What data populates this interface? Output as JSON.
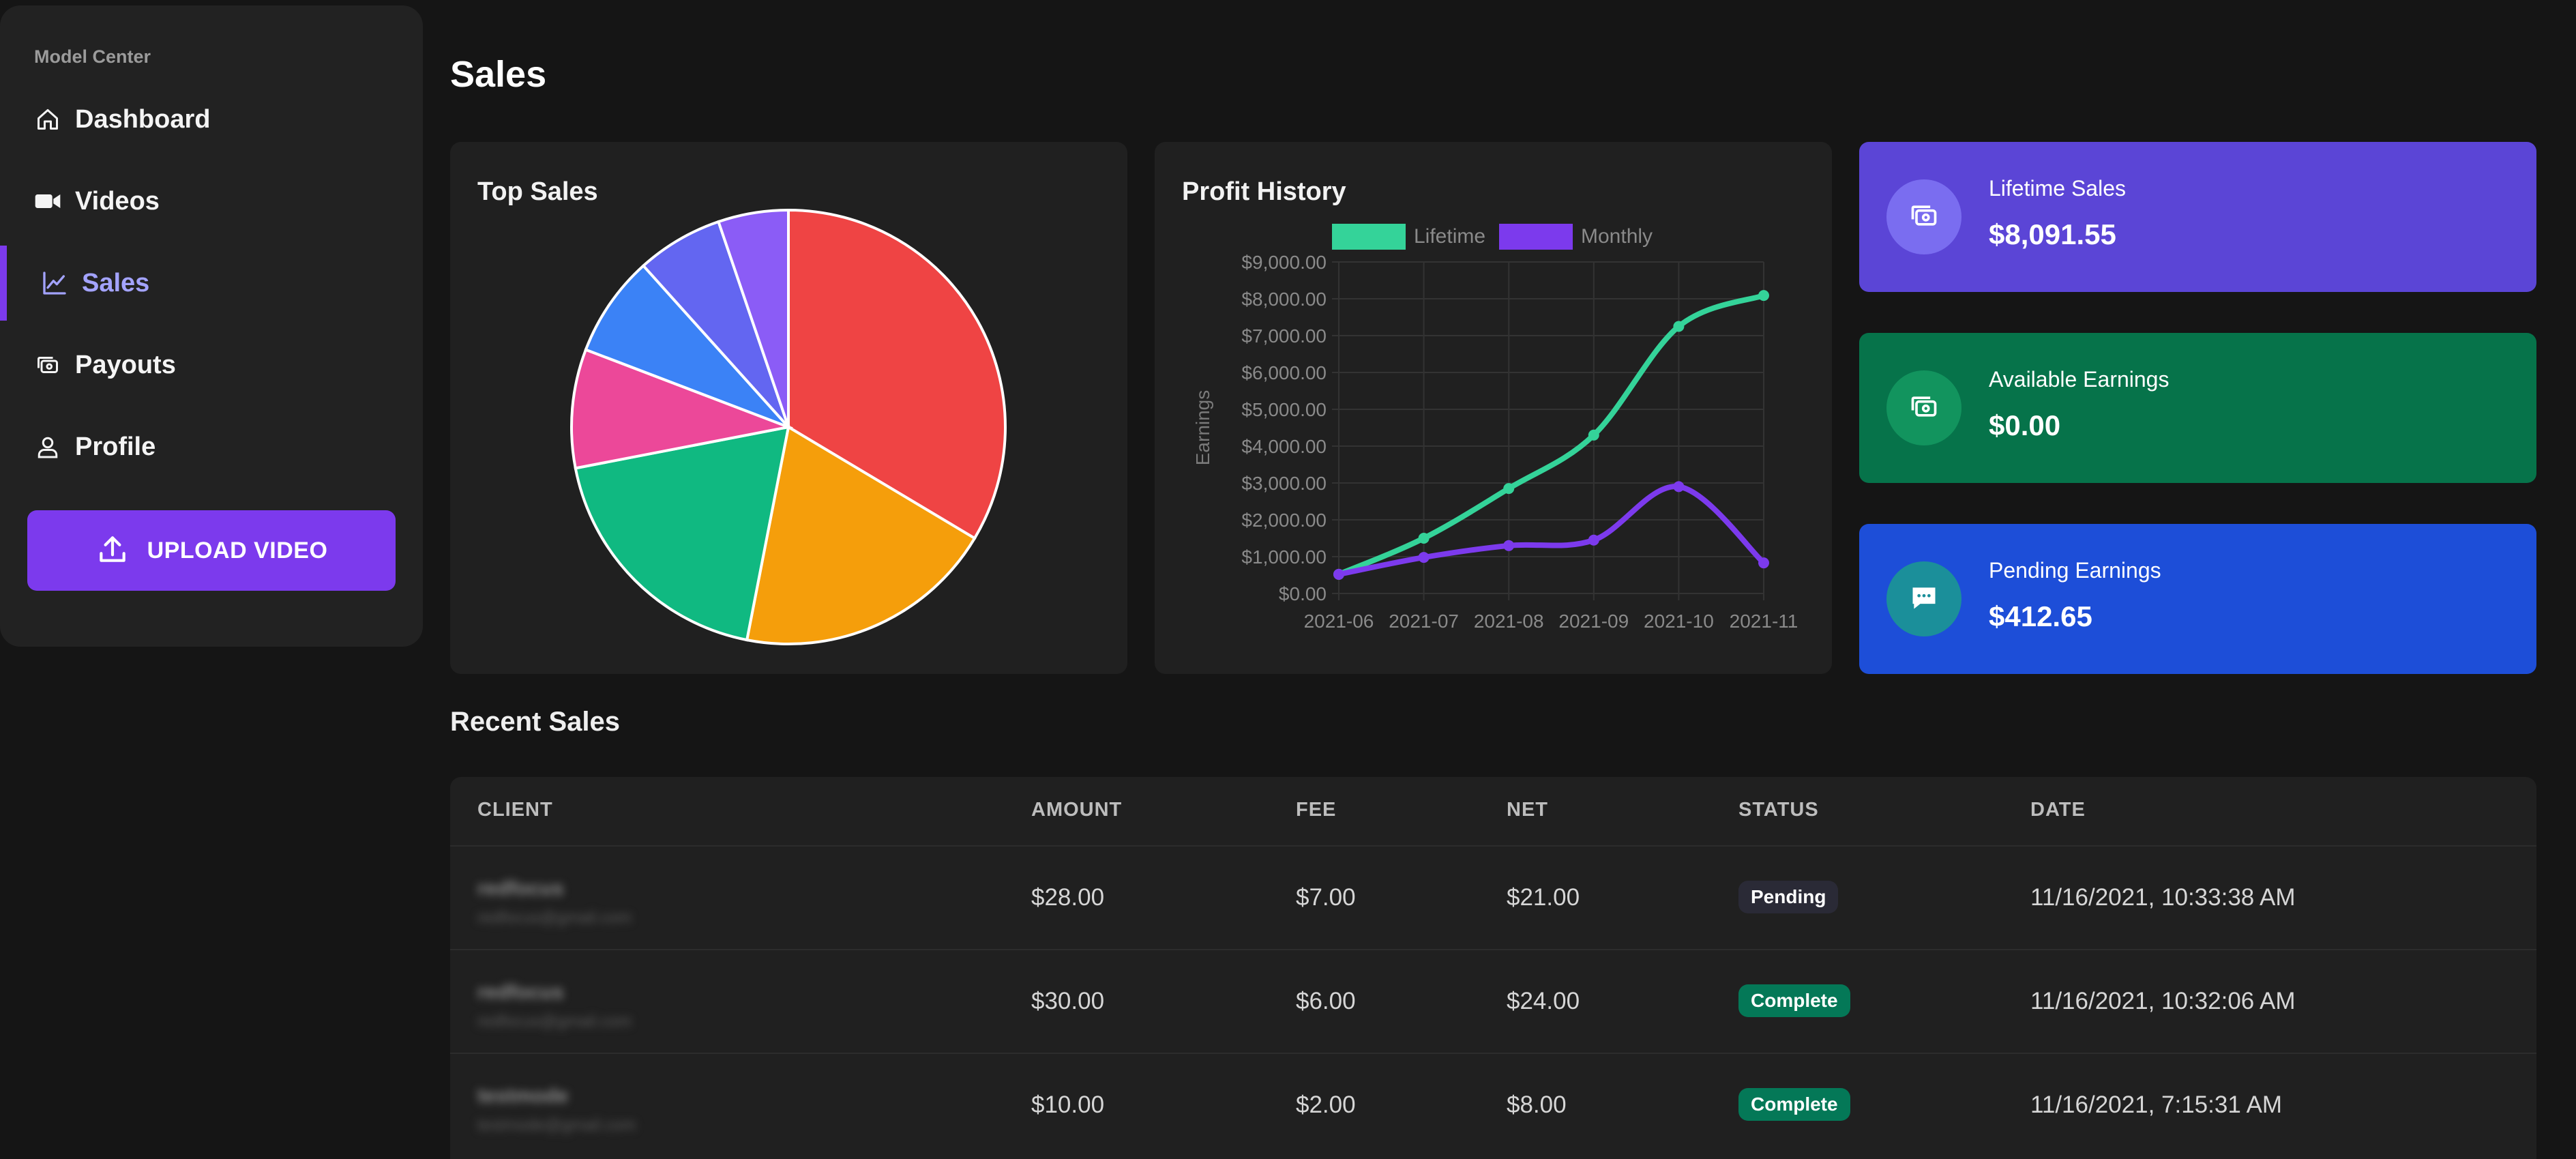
{
  "sidebar": {
    "brand": "Model Center",
    "items": [
      {
        "label": "Dashboard",
        "icon": "home-icon"
      },
      {
        "label": "Videos",
        "icon": "video-camera-icon"
      },
      {
        "label": "Sales",
        "icon": "chart-line-icon",
        "active": true
      },
      {
        "label": "Payouts",
        "icon": "cash-icon"
      },
      {
        "label": "Profile",
        "icon": "user-icon"
      }
    ],
    "upload_label": "UPLOAD VIDEO"
  },
  "page": {
    "title": "Sales"
  },
  "top_sales": {
    "title": "Top Sales"
  },
  "profit_history": {
    "title": "Profit History"
  },
  "stats": [
    {
      "label": "Lifetime Sales",
      "value": "$8,091.55",
      "bg": "#5b45d6",
      "circle": "#7a6df0",
      "icon": "cash-icon"
    },
    {
      "label": "Available Earnings",
      "value": "$0.00",
      "bg": "#06734a",
      "circle": "#12945e",
      "icon": "cash-icon"
    },
    {
      "label": "Pending Earnings",
      "value": "$412.65",
      "bg": "#1d4ed8",
      "circle": "#1b8f9a",
      "icon": "chat-bubble-icon"
    }
  ],
  "recent_sales": {
    "title": "Recent Sales",
    "columns": [
      "CLIENT",
      "AMOUNT",
      "FEE",
      "NET",
      "STATUS",
      "DATE"
    ],
    "rows": [
      {
        "client_name": "redfocus",
        "client_email": "redfocus@gmail.com",
        "amount": "$28.00",
        "fee": "$7.00",
        "net": "$21.00",
        "status": "Pending",
        "date": "11/16/2021, 10:33:38 AM"
      },
      {
        "client_name": "redfocus",
        "client_email": "redfocus@gmail.com",
        "amount": "$30.00",
        "fee": "$6.00",
        "net": "$24.00",
        "status": "Complete",
        "date": "11/16/2021, 10:32:06 AM"
      },
      {
        "client_name": "testmode",
        "client_email": "testmode@gmail.com",
        "amount": "$10.00",
        "fee": "$2.00",
        "net": "$8.00",
        "status": "Complete",
        "date": "11/16/2021, 7:15:31 AM"
      }
    ],
    "status_colors": {
      "Pending": "#2a2a36",
      "Complete": "#047857"
    }
  },
  "chart_data": [
    {
      "type": "pie",
      "title": "Top Sales",
      "values": [
        33.4,
        19.4,
        18.8,
        8.8,
        7.5,
        6.4,
        5.2
      ],
      "colors": [
        "#ef4444",
        "#f59e0b",
        "#10b981",
        "#ec4899",
        "#3b82f6",
        "#6366f1",
        "#8b5cf6"
      ]
    },
    {
      "type": "line",
      "title": "Profit History",
      "categories": [
        "2021-06",
        "2021-07",
        "2021-08",
        "2021-09",
        "2021-10",
        "2021-11"
      ],
      "ylabel": "Earnings",
      "ylim": [
        0,
        9000
      ],
      "yticks": [
        "$0.00",
        "$1,000.00",
        "$2,000.00",
        "$3,000.00",
        "$4,000.00",
        "$5,000.00",
        "$6,000.00",
        "$7,000.00",
        "$8,000.00",
        "$9,000.00"
      ],
      "legend": "top",
      "grid": true,
      "series": [
        {
          "name": "Lifetime",
          "color": "#34d399",
          "values": [
            520,
            1500,
            2850,
            4300,
            7250,
            8090
          ]
        },
        {
          "name": "Monthly",
          "color": "#7c3aed",
          "values": [
            520,
            980,
            1300,
            1450,
            2900,
            830
          ]
        }
      ]
    }
  ]
}
